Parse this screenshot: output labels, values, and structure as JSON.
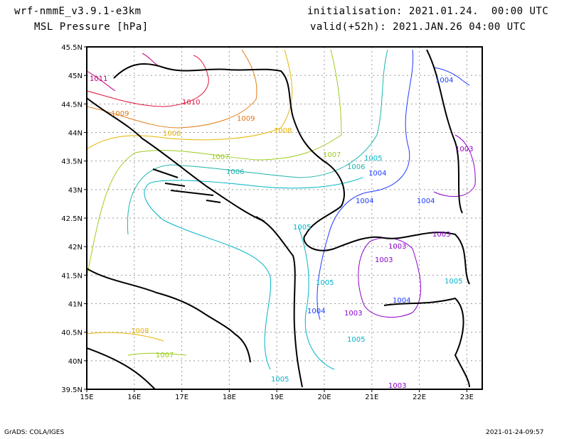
{
  "header": {
    "model": "wrf-nmmE_v3.9.1-e3km",
    "field": "MSL Pressure [hPa]",
    "init": "initialisation: 2021.01.24.  00:00 UTC",
    "valid": "valid(+52h): 2021.JAN.26 04:00 UTC"
  },
  "footer": {
    "left": "GrADS: COLA/IGES",
    "right": "2021-01-24-09:57"
  },
  "axes": {
    "lon_ticks": [
      "15E",
      "16E",
      "17E",
      "18E",
      "19E",
      "20E",
      "21E",
      "22E",
      "23E"
    ],
    "lat_ticks": [
      "45.5N",
      "45N",
      "44.5N",
      "44N",
      "43.5N",
      "43N",
      "42.5N",
      "42N",
      "41.5N",
      "41N",
      "40.5N",
      "40N",
      "39.5N"
    ]
  },
  "contour_labels": [
    {
      "text": "1011",
      "color": "#c0007f"
    },
    {
      "text": "1010",
      "color": "#e0143c"
    },
    {
      "text": "1009",
      "color": "#e07a14"
    },
    {
      "text": "1009",
      "color": "#e07a14"
    },
    {
      "text": "1008",
      "color": "#e6b400"
    },
    {
      "text": "1008",
      "color": "#e6b400"
    },
    {
      "text": "1007",
      "color": "#9ccc1e"
    },
    {
      "text": "1007",
      "color": "#9ccc1e"
    },
    {
      "text": "1006",
      "color": "#1eb4aa"
    },
    {
      "text": "1006",
      "color": "#1eb4aa"
    },
    {
      "text": "1005",
      "color": "#00b4c8"
    },
    {
      "text": "1005",
      "color": "#00b4c8"
    },
    {
      "text": "1004",
      "color": "#1e3cff"
    },
    {
      "text": "1004",
      "color": "#1e3cff"
    },
    {
      "text": "1004",
      "color": "#1e3cff"
    },
    {
      "text": "1003",
      "color": "#8c00c8"
    },
    {
      "text": "1003",
      "color": "#8c00c8"
    },
    {
      "text": "1003",
      "color": "#8c00c8"
    },
    {
      "text": "1005",
      "color": "#00b4c8"
    },
    {
      "text": "1004",
      "color": "#1e3cff"
    },
    {
      "text": "1003",
      "color": "#8c00c8"
    },
    {
      "text": "1004",
      "color": "#1e3cff"
    },
    {
      "text": "1005",
      "color": "#00b4c8"
    },
    {
      "text": "1005",
      "color": "#00b4c8"
    },
    {
      "text": "1008",
      "color": "#e6b400"
    },
    {
      "text": "1007",
      "color": "#9ccc1e"
    },
    {
      "text": "1005",
      "color": "#00b4c8"
    },
    {
      "text": "1003",
      "color": "#8c00c8"
    },
    {
      "text": "1003",
      "color": "#8c00c8"
    },
    {
      "text": "1004",
      "color": "#1e3cff"
    }
  ],
  "colors": {
    "1011": "#c0007f",
    "1010": "#e0143c",
    "1009": "#e07a14",
    "1008": "#e6b400",
    "1007": "#9ccc1e",
    "1006": "#1eb4aa",
    "1005": "#00b4c8",
    "1004": "#1e3cff",
    "1003": "#8c00c8"
  }
}
